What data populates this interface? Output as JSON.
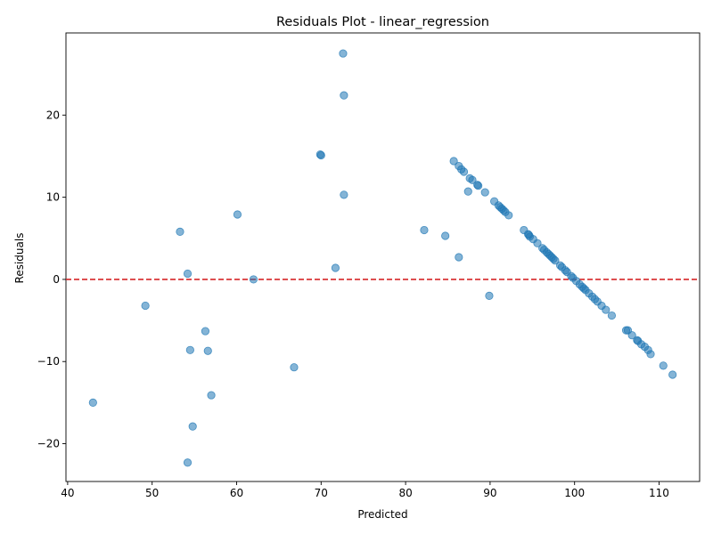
{
  "chart_data": {
    "type": "scatter",
    "title": "Residuals Plot - linear_regression",
    "xlabel": "Predicted",
    "ylabel": "Residuals",
    "xlim": [
      39.8,
      114.8
    ],
    "ylim": [
      -24.6,
      30.0
    ],
    "xticks": [
      40,
      50,
      60,
      70,
      80,
      90,
      100,
      110
    ],
    "yticks": [
      -20,
      -10,
      0,
      10,
      20
    ],
    "grid": false,
    "legend": "none",
    "colors": {
      "point": "#1f77b4",
      "zero_line": "#d62728"
    },
    "reference_line": {
      "y": 0,
      "style": "dashed"
    },
    "points": [
      {
        "x": 43.0,
        "y": -15.0
      },
      {
        "x": 49.2,
        "y": -3.2
      },
      {
        "x": 53.3,
        "y": 5.8
      },
      {
        "x": 54.2,
        "y": 0.7
      },
      {
        "x": 54.2,
        "y": -22.3
      },
      {
        "x": 54.5,
        "y": -8.6
      },
      {
        "x": 54.8,
        "y": -17.9
      },
      {
        "x": 56.3,
        "y": -6.3
      },
      {
        "x": 56.6,
        "y": -8.7
      },
      {
        "x": 57.0,
        "y": -14.1
      },
      {
        "x": 60.1,
        "y": 7.9
      },
      {
        "x": 62.0,
        "y": 0.0
      },
      {
        "x": 66.8,
        "y": -10.7
      },
      {
        "x": 69.9,
        "y": 15.2
      },
      {
        "x": 70.0,
        "y": 15.1
      },
      {
        "x": 71.7,
        "y": 1.4
      },
      {
        "x": 72.6,
        "y": 27.5
      },
      {
        "x": 72.7,
        "y": 22.4
      },
      {
        "x": 72.7,
        "y": 10.3
      },
      {
        "x": 82.2,
        "y": 6.0
      },
      {
        "x": 84.7,
        "y": 5.3
      },
      {
        "x": 85.7,
        "y": 14.4
      },
      {
        "x": 86.3,
        "y": 2.7
      },
      {
        "x": 86.3,
        "y": 13.8
      },
      {
        "x": 86.6,
        "y": 13.4
      },
      {
        "x": 86.9,
        "y": 13.1
      },
      {
        "x": 87.4,
        "y": 10.7
      },
      {
        "x": 87.6,
        "y": 12.3
      },
      {
        "x": 87.9,
        "y": 12.1
      },
      {
        "x": 88.5,
        "y": 11.5
      },
      {
        "x": 88.6,
        "y": 11.4
      },
      {
        "x": 89.4,
        "y": 10.6
      },
      {
        "x": 89.9,
        "y": -2.0
      },
      {
        "x": 90.5,
        "y": 9.5
      },
      {
        "x": 91.0,
        "y": 9.0
      },
      {
        "x": 91.2,
        "y": 8.8
      },
      {
        "x": 91.4,
        "y": 8.6
      },
      {
        "x": 91.6,
        "y": 8.4
      },
      {
        "x": 91.8,
        "y": 8.2
      },
      {
        "x": 92.2,
        "y": 7.8
      },
      {
        "x": 94.0,
        "y": 6.0
      },
      {
        "x": 94.5,
        "y": 5.5
      },
      {
        "x": 94.6,
        "y": 5.4
      },
      {
        "x": 94.7,
        "y": 5.2
      },
      {
        "x": 95.1,
        "y": 4.9
      },
      {
        "x": 95.6,
        "y": 4.4
      },
      {
        "x": 96.2,
        "y": 3.8
      },
      {
        "x": 96.4,
        "y": 3.6
      },
      {
        "x": 96.7,
        "y": 3.3
      },
      {
        "x": 96.9,
        "y": 3.1
      },
      {
        "x": 97.1,
        "y": 2.9
      },
      {
        "x": 97.3,
        "y": 2.7
      },
      {
        "x": 97.5,
        "y": 2.5
      },
      {
        "x": 97.7,
        "y": 2.3
      },
      {
        "x": 98.3,
        "y": 1.7
      },
      {
        "x": 98.5,
        "y": 1.5
      },
      {
        "x": 98.9,
        "y": 1.1
      },
      {
        "x": 99.1,
        "y": 0.9
      },
      {
        "x": 99.6,
        "y": 0.4
      },
      {
        "x": 99.8,
        "y": 0.2
      },
      {
        "x": 100.2,
        "y": -0.2
      },
      {
        "x": 100.6,
        "y": -0.6
      },
      {
        "x": 100.9,
        "y": -0.9
      },
      {
        "x": 101.1,
        "y": -1.1
      },
      {
        "x": 101.3,
        "y": -1.3
      },
      {
        "x": 101.7,
        "y": -1.7
      },
      {
        "x": 102.1,
        "y": -2.1
      },
      {
        "x": 102.4,
        "y": -2.4
      },
      {
        "x": 102.7,
        "y": -2.7
      },
      {
        "x": 103.2,
        "y": -3.2
      },
      {
        "x": 103.7,
        "y": -3.7
      },
      {
        "x": 104.4,
        "y": -4.4
      },
      {
        "x": 106.1,
        "y": -6.2
      },
      {
        "x": 106.3,
        "y": -6.2
      },
      {
        "x": 106.8,
        "y": -6.8
      },
      {
        "x": 107.4,
        "y": -7.4
      },
      {
        "x": 107.5,
        "y": -7.5
      },
      {
        "x": 107.9,
        "y": -7.9
      },
      {
        "x": 108.3,
        "y": -8.2
      },
      {
        "x": 108.7,
        "y": -8.6
      },
      {
        "x": 109.0,
        "y": -9.1
      },
      {
        "x": 110.5,
        "y": -10.5
      },
      {
        "x": 111.6,
        "y": -11.6
      }
    ]
  }
}
